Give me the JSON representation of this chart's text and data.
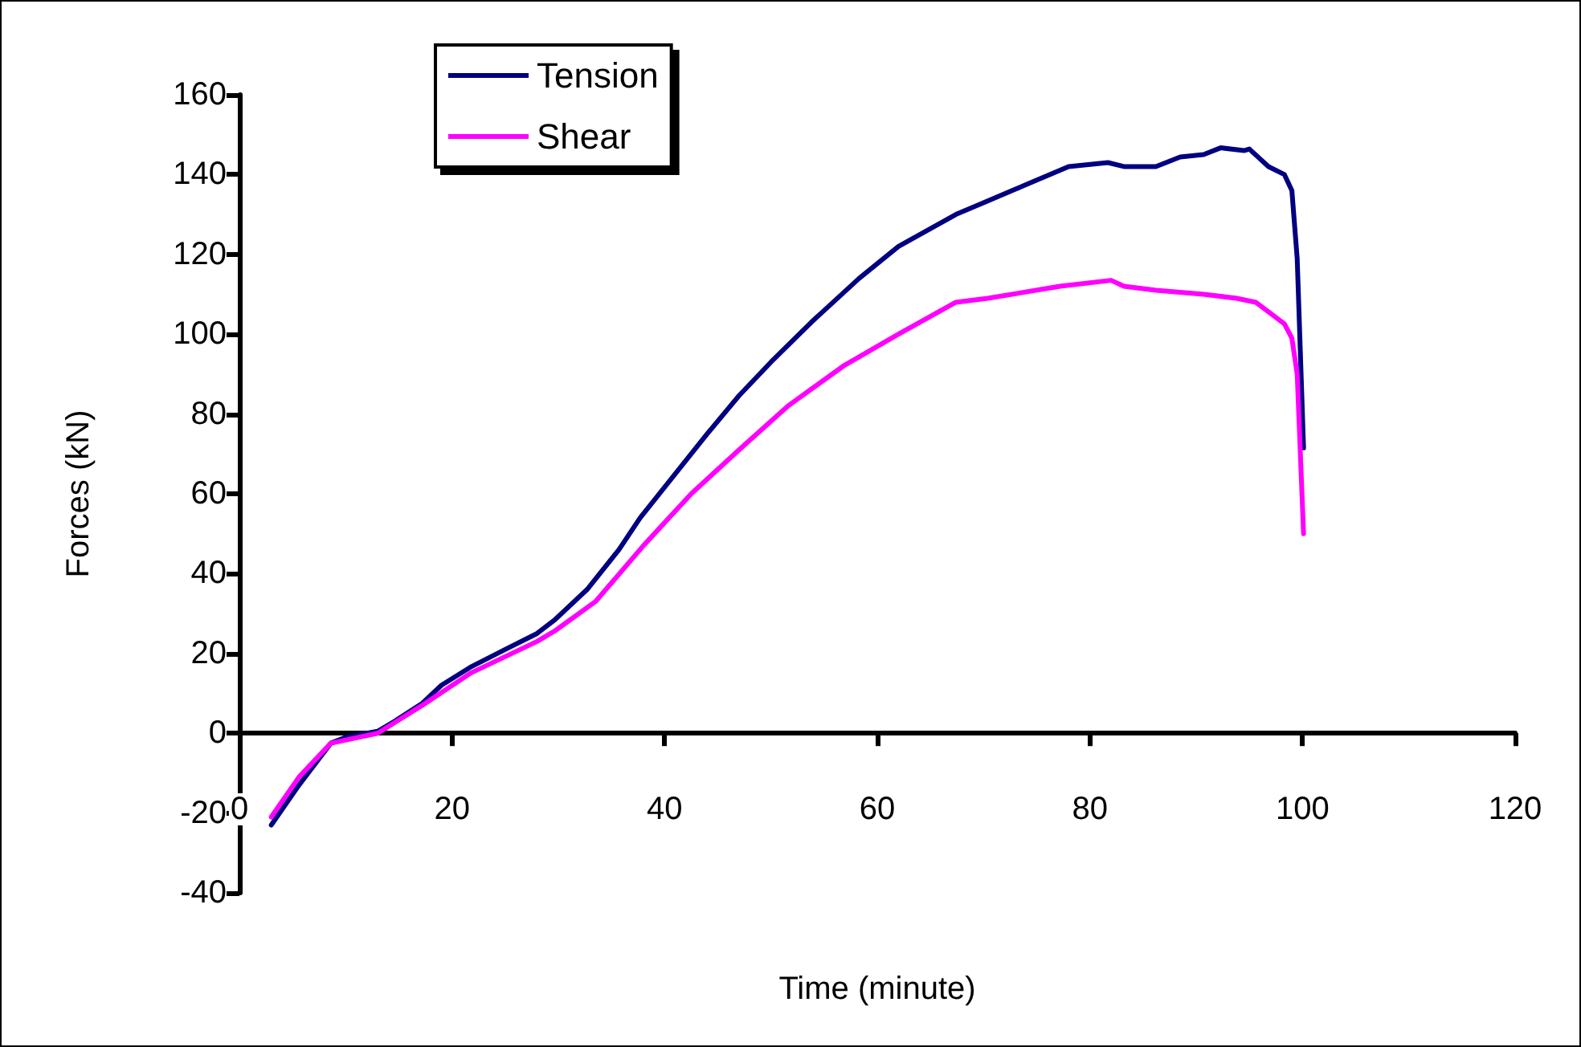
{
  "chart_data": {
    "type": "line",
    "xlabel": "Time (minute)",
    "ylabel": "Forces (kN)",
    "xlim": [
      0,
      120
    ],
    "xticks": [
      0,
      20,
      40,
      60,
      80,
      100,
      120
    ],
    "ylim": [
      -40,
      160
    ],
    "yticks": [
      -40,
      -20,
      0,
      20,
      40,
      60,
      80,
      100,
      120,
      140,
      160
    ],
    "legend": "top left",
    "marker": "none",
    "line_style": "solid",
    "series": [
      {
        "name": "Tension",
        "color": "#000080",
        "x": [
          3,
          5.6,
          8.6,
          10,
          13,
          14.6,
          17.2,
          19,
          21.7,
          25,
          28,
          29.7,
          32.7,
          35.7,
          37.7,
          41,
          44,
          47,
          50,
          53.8,
          58.3,
          62,
          67.4,
          72.7,
          78,
          81.7,
          83.2,
          86.2,
          88.5,
          90.7,
          92.3,
          94.5,
          95,
          96.8,
          98.3,
          99,
          99.5,
          100.1
        ],
        "values": [
          -23,
          -13,
          -2.5,
          -1,
          0.5,
          3,
          7.5,
          12,
          16.5,
          21,
          25,
          28.5,
          36,
          46,
          54,
          65,
          75,
          84.6,
          93,
          103,
          114,
          122,
          130,
          136,
          142,
          143,
          142,
          142,
          144.4,
          145,
          146.7,
          146,
          146.4,
          142,
          140,
          136,
          119,
          71.5
        ]
      },
      {
        "name": "Shear",
        "color": "#ff00ff",
        "x": [
          3,
          5.6,
          8.6,
          13,
          17.2,
          21.7,
          28,
          29.7,
          33.5,
          38,
          42.5,
          47,
          51.6,
          56.8,
          62,
          67.4,
          70.4,
          77.2,
          82,
          83.2,
          86.2,
          90.7,
          93.8,
          95.6,
          98.3,
          99,
          99.5,
          100.1
        ],
        "values": [
          -21,
          -11,
          -2.5,
          0,
          7,
          15,
          23,
          25.7,
          33,
          47,
          60,
          71,
          82,
          92,
          100,
          108,
          109,
          112,
          113.5,
          112,
          111,
          110,
          109,
          108,
          102.6,
          99,
          90,
          50
        ]
      }
    ]
  }
}
